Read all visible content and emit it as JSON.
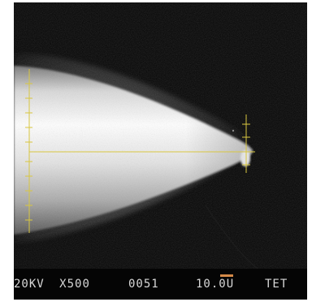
{
  "micrograph": {
    "accelerating_voltage": "20KV",
    "magnification": "X500",
    "image_number": "0051",
    "scale_bar": "10.0U",
    "operator_id": "TET"
  },
  "colors": {
    "background": "#050505",
    "measurement_overlay": "#d8c640",
    "databar_text": "#d8d8d8",
    "scale_marker": "#d58a48"
  }
}
